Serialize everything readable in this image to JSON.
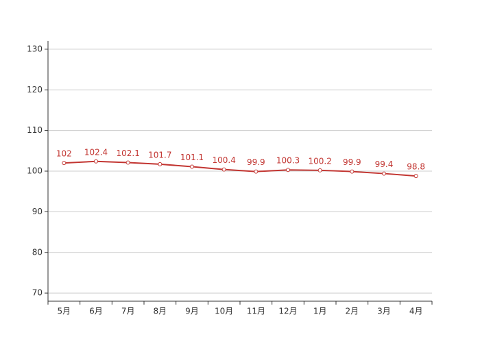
{
  "chart_data": {
    "type": "line",
    "categories": [
      "5月",
      "6月",
      "7月",
      "8月",
      "9月",
      "10月",
      "11月",
      "12月",
      "1月",
      "2月",
      "3月",
      "4月"
    ],
    "values": [
      102,
      102.4,
      102.1,
      101.7,
      101.1,
      100.4,
      99.9,
      100.3,
      100.2,
      99.9,
      99.4,
      98.8
    ],
    "color": "#c23531",
    "ylim": [
      68,
      132
    ],
    "yticks": [
      70,
      80,
      90,
      100,
      110,
      120,
      130
    ],
    "grid": true
  }
}
